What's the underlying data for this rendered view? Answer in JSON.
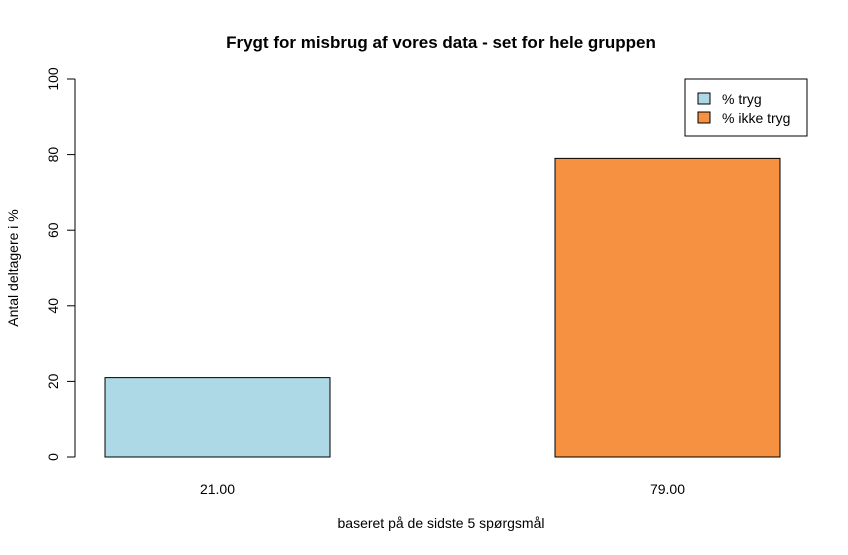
{
  "chart_data": {
    "type": "bar",
    "title": "Frygt for misbrug af vores data - set for hele gruppen",
    "xlabel": "baseret på de sidste 5 spørgsmål",
    "ylabel": "Antal deltagere i %",
    "ylim": [
      0,
      100
    ],
    "yticks": [
      "0",
      "20",
      "40",
      "60",
      "80",
      "100"
    ],
    "categories": [
      "21.00",
      "79.00"
    ],
    "values": [
      21,
      79
    ],
    "colors": [
      "#add8e6",
      "#f59141"
    ],
    "legend": {
      "placement": "top-right",
      "entries": [
        {
          "label": "% tryg",
          "color": "#add8e6"
        },
        {
          "label": "% ikke tryg",
          "color": "#f59141"
        }
      ]
    },
    "grid": false
  }
}
